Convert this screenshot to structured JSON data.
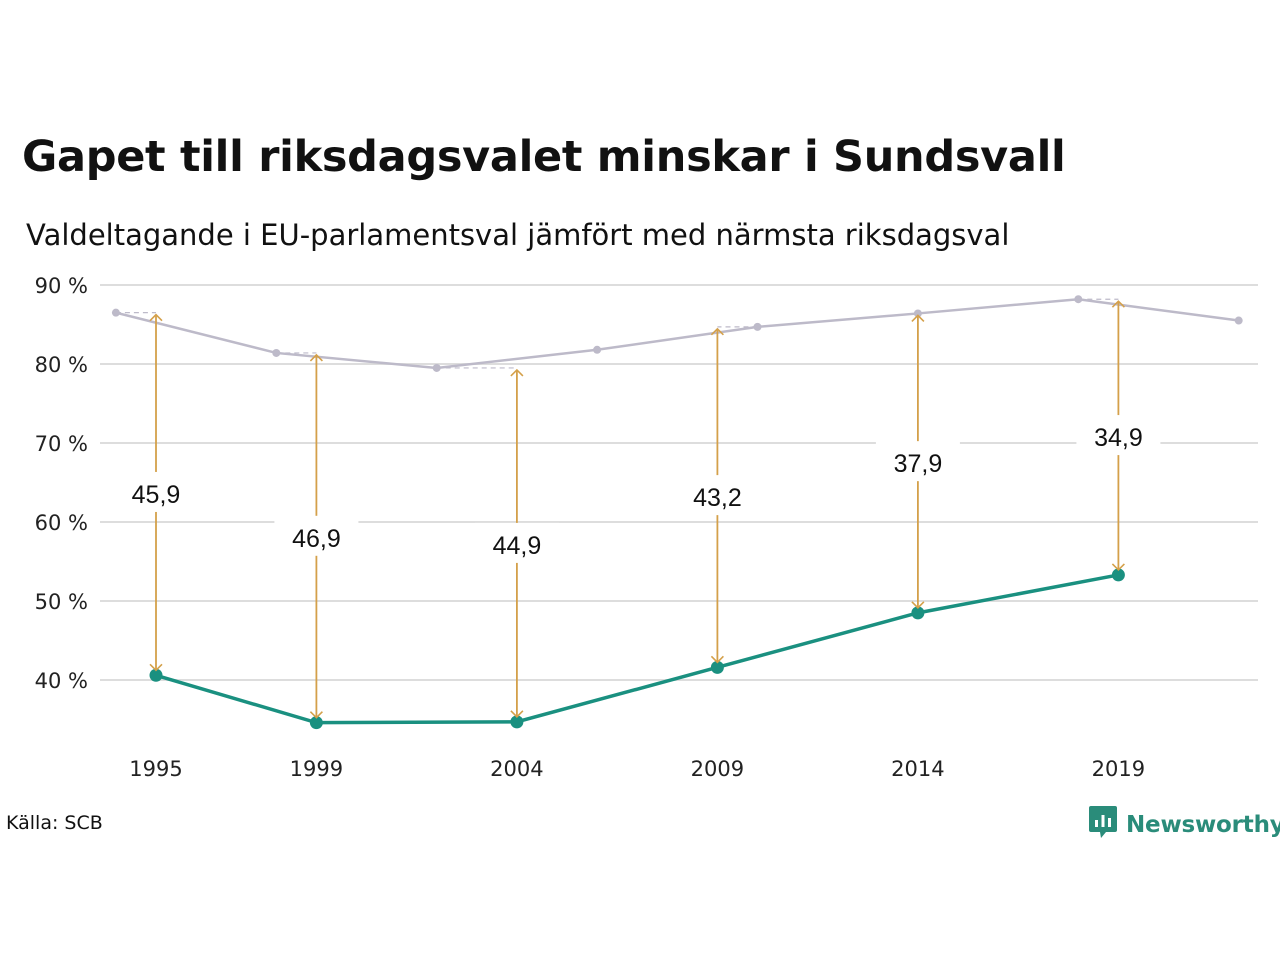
{
  "chart_data": {
    "type": "line",
    "title": "Gapet till riksdagsvalet minskar i Sundsvall",
    "subtitle": "Valdeltagande i EU-parlamentsval jämfört med närmsta riksdagsval",
    "ylim": [
      30,
      90
    ],
    "y_ticks": [
      "90 %",
      "80 %",
      "70 %",
      "60 %",
      "50 %",
      "40 %"
    ],
    "y_tick_values": [
      90,
      80,
      70,
      60,
      50,
      40
    ],
    "x_tick_labels": [
      "1995",
      "1999",
      "2004",
      "2009",
      "2014",
      "2019"
    ],
    "grid": true,
    "colors": {
      "eu": "#1a9080",
      "riksdag": "#bdbac9",
      "arrow": "#d4a04a",
      "grid": "#dddddd"
    },
    "series": [
      {
        "key": "riksdag",
        "x": [
          1994,
          1998,
          2002,
          2006,
          2010,
          2014,
          2018,
          2022
        ],
        "values": [
          86.5,
          81.4,
          79.5,
          81.8,
          84.7,
          86.4,
          88.2,
          85.5
        ]
      },
      {
        "key": "eu",
        "x": [
          1995,
          1999,
          2004,
          2009,
          2014,
          2019
        ],
        "values": [
          40.6,
          34.6,
          34.7,
          41.6,
          48.5,
          53.3
        ]
      }
    ],
    "gaps": [
      {
        "x": 1995,
        "from": 40.6,
        "to": 86.5,
        "label": "45,9"
      },
      {
        "x": 1999,
        "from": 34.6,
        "to": 81.4,
        "label": "46,9"
      },
      {
        "x": 2004,
        "from": 34.7,
        "to": 79.5,
        "label": "44,9"
      },
      {
        "x": 2009,
        "from": 41.6,
        "to": 84.7,
        "label": "43,2"
      },
      {
        "x": 2014,
        "from": 48.5,
        "to": 86.4,
        "label": "37,9"
      },
      {
        "x": 2019,
        "from": 53.3,
        "to": 88.2,
        "label": "34,9"
      }
    ]
  },
  "footer": {
    "source": "Källa: SCB",
    "brand": "Newsworthy",
    "brand_icon": "newsworthy-logo-icon"
  }
}
